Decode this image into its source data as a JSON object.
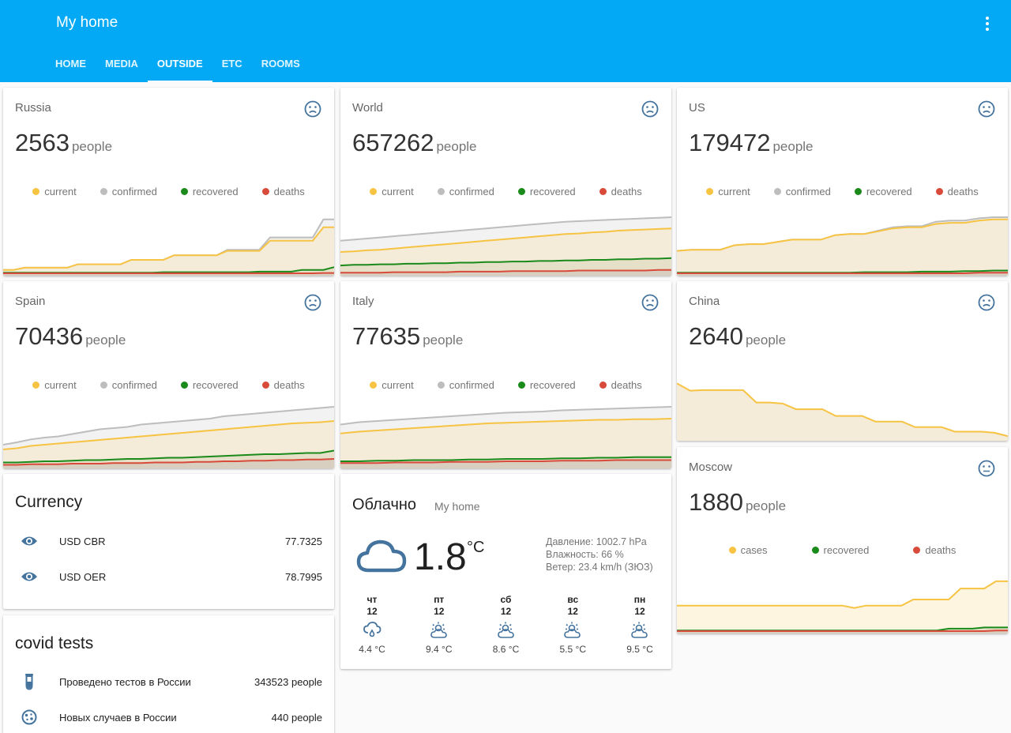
{
  "app": {
    "title": "My home"
  },
  "tabs": [
    {
      "label": "HOME",
      "active": false
    },
    {
      "label": "MEDIA",
      "active": false
    },
    {
      "label": "OUTSIDE",
      "active": true
    },
    {
      "label": "ETC",
      "active": false
    },
    {
      "label": "ROOMS",
      "active": false
    }
  ],
  "colors": {
    "header": "#03a9f4",
    "current": "#f6c343",
    "confirmed": "#bdbdbd",
    "recovered": "#1a8a1a",
    "deaths": "#d84a3a",
    "icon": "#44739e"
  },
  "series_labels": {
    "current": "current",
    "confirmed": "confirmed",
    "recovered": "recovered",
    "deaths": "deaths",
    "cases": "cases"
  },
  "covid_cards": [
    {
      "id": "russia",
      "name": "Russia",
      "value": "2563",
      "unit": "people",
      "icon": "sad-face-icon",
      "chart_data": {
        "type": "area",
        "series": [
          {
            "key": "current",
            "values": [
              0.06,
              0.06,
              0.1,
              0.1,
              0.1,
              0.1,
              0.1,
              0.16,
              0.16,
              0.16,
              0.16,
              0.16,
              0.24,
              0.24,
              0.24,
              0.24,
              0.32,
              0.32,
              0.32,
              0.32,
              0.32,
              0.4,
              0.4,
              0.4,
              0.4,
              0.58,
              0.58,
              0.58,
              0.58,
              0.58,
              0.82,
              0.82
            ]
          },
          {
            "key": "confirmed",
            "values": [
              0.06,
              0.06,
              0.1,
              0.1,
              0.1,
              0.1,
              0.1,
              0.16,
              0.16,
              0.16,
              0.16,
              0.16,
              0.24,
              0.24,
              0.24,
              0.24,
              0.32,
              0.32,
              0.32,
              0.32,
              0.32,
              0.42,
              0.42,
              0.42,
              0.42,
              0.64,
              0.64,
              0.64,
              0.64,
              0.64,
              0.96,
              0.96
            ]
          },
          {
            "key": "recovered",
            "values": [
              0.01,
              0.01,
              0.01,
              0.01,
              0.01,
              0.01,
              0.01,
              0.01,
              0.01,
              0.01,
              0.01,
              0.01,
              0.01,
              0.01,
              0.01,
              0.02,
              0.02,
              0.02,
              0.02,
              0.02,
              0.02,
              0.02,
              0.02,
              0.02,
              0.03,
              0.03,
              0.03,
              0.03,
              0.06,
              0.06,
              0.06,
              0.11
            ]
          },
          {
            "key": "deaths",
            "values": [
              0,
              0,
              0,
              0,
              0,
              0,
              0,
              0,
              0,
              0,
              0,
              0,
              0,
              0,
              0,
              0,
              0,
              0,
              0,
              0,
              0,
              0,
              0,
              0,
              0,
              0,
              0,
              0,
              0,
              0,
              0.005,
              0.005
            ]
          }
        ]
      }
    },
    {
      "id": "world",
      "name": "World",
      "value": "657262",
      "unit": "people",
      "icon": "sad-face-icon",
      "chart_data": {
        "type": "area",
        "series": [
          {
            "key": "current",
            "values": [
              0.38,
              0.39,
              0.41,
              0.42,
              0.44,
              0.46,
              0.48,
              0.5,
              0.52,
              0.54,
              0.56,
              0.58,
              0.6,
              0.62,
              0.64,
              0.66,
              0.68,
              0.7,
              0.71,
              0.73,
              0.74,
              0.76,
              0.77,
              0.78,
              0.79,
              0.8
            ]
          },
          {
            "key": "confirmed",
            "values": [
              0.58,
              0.6,
              0.62,
              0.64,
              0.66,
              0.68,
              0.7,
              0.72,
              0.74,
              0.76,
              0.78,
              0.8,
              0.82,
              0.84,
              0.86,
              0.88,
              0.9,
              0.92,
              0.93,
              0.94,
              0.95,
              0.96,
              0.97,
              0.98,
              0.99,
              1.0
            ]
          },
          {
            "key": "recovered",
            "values": [
              0.14,
              0.15,
              0.15,
              0.16,
              0.16,
              0.17,
              0.17,
              0.18,
              0.18,
              0.19,
              0.19,
              0.2,
              0.2,
              0.21,
              0.21,
              0.22,
              0.22,
              0.23,
              0.23,
              0.24,
              0.24,
              0.25,
              0.25,
              0.26,
              0.26,
              0.27
            ]
          },
          {
            "key": "deaths",
            "values": [
              0.01,
              0.01,
              0.01,
              0.01,
              0.02,
              0.02,
              0.02,
              0.02,
              0.02,
              0.03,
              0.03,
              0.03,
              0.03,
              0.04,
              0.04,
              0.04,
              0.04,
              0.04,
              0.05,
              0.05,
              0.05,
              0.05,
              0.05,
              0.05,
              0.06,
              0.06
            ]
          }
        ]
      }
    },
    {
      "id": "us",
      "name": "US",
      "value": "179472",
      "unit": "people",
      "icon": "sad-face-icon",
      "chart_data": {
        "type": "area",
        "series": [
          {
            "key": "current",
            "values": [
              0.4,
              0.42,
              0.42,
              0.42,
              0.5,
              0.52,
              0.52,
              0.56,
              0.6,
              0.6,
              0.6,
              0.68,
              0.7,
              0.7,
              0.75,
              0.8,
              0.82,
              0.82,
              0.88,
              0.9,
              0.9,
              0.94,
              0.96,
              0.96
            ]
          },
          {
            "key": "confirmed",
            "values": [
              0.4,
              0.42,
              0.42,
              0.42,
              0.5,
              0.52,
              0.52,
              0.56,
              0.6,
              0.6,
              0.6,
              0.68,
              0.7,
              0.7,
              0.76,
              0.82,
              0.84,
              0.84,
              0.92,
              0.94,
              0.94,
              0.98,
              1.0,
              1.0
            ]
          },
          {
            "key": "recovered",
            "values": [
              0.01,
              0.01,
              0.01,
              0.01,
              0.01,
              0.01,
              0.01,
              0.01,
              0.01,
              0.01,
              0.01,
              0.01,
              0.01,
              0.02,
              0.02,
              0.02,
              0.02,
              0.03,
              0.03,
              0.03,
              0.04,
              0.04,
              0.05,
              0.05
            ]
          },
          {
            "key": "deaths",
            "values": [
              0,
              0,
              0,
              0,
              0,
              0,
              0,
              0,
              0,
              0,
              0,
              0,
              0,
              0,
              0,
              0,
              0,
              0,
              0,
              0,
              0,
              0.01,
              0.01,
              0.01
            ]
          }
        ]
      }
    },
    {
      "id": "spain",
      "name": "Spain",
      "value": "70436",
      "unit": "people",
      "icon": "sad-face-icon",
      "chart_data": {
        "type": "area",
        "series": [
          {
            "key": "current",
            "values": [
              0.28,
              0.3,
              0.34,
              0.36,
              0.38,
              0.4,
              0.42,
              0.44,
              0.46,
              0.48,
              0.5,
              0.52,
              0.54,
              0.56,
              0.58,
              0.6,
              0.62,
              0.64,
              0.66,
              0.68,
              0.7,
              0.72,
              0.73,
              0.74,
              0.76
            ]
          },
          {
            "key": "confirmed",
            "values": [
              0.36,
              0.4,
              0.45,
              0.48,
              0.5,
              0.54,
              0.58,
              0.62,
              0.64,
              0.66,
              0.7,
              0.72,
              0.74,
              0.76,
              0.78,
              0.8,
              0.84,
              0.86,
              0.88,
              0.9,
              0.92,
              0.94,
              0.96,
              0.98,
              1.0
            ]
          },
          {
            "key": "recovered",
            "values": [
              0.06,
              0.06,
              0.07,
              0.08,
              0.08,
              0.09,
              0.1,
              0.1,
              0.11,
              0.12,
              0.12,
              0.13,
              0.14,
              0.14,
              0.15,
              0.16,
              0.17,
              0.18,
              0.19,
              0.2,
              0.2,
              0.21,
              0.22,
              0.22,
              0.26
            ]
          },
          {
            "key": "deaths",
            "values": [
              0.02,
              0.02,
              0.03,
              0.03,
              0.03,
              0.04,
              0.04,
              0.04,
              0.05,
              0.05,
              0.05,
              0.06,
              0.06,
              0.06,
              0.07,
              0.07,
              0.08,
              0.08,
              0.09,
              0.09,
              0.1,
              0.1,
              0.11,
              0.11,
              0.12
            ]
          }
        ]
      }
    },
    {
      "id": "italy",
      "name": "Italy",
      "value": "77635",
      "unit": "people",
      "icon": "sad-face-icon",
      "chart_data": {
        "type": "area",
        "series": [
          {
            "key": "current",
            "values": [
              0.55,
              0.58,
              0.6,
              0.62,
              0.64,
              0.66,
              0.68,
              0.7,
              0.72,
              0.73,
              0.74,
              0.75,
              0.76,
              0.77,
              0.78,
              0.78,
              0.79,
              0.79,
              0.8
            ]
          },
          {
            "key": "confirmed",
            "values": [
              0.7,
              0.74,
              0.76,
              0.78,
              0.8,
              0.82,
              0.84,
              0.86,
              0.88,
              0.9,
              0.91,
              0.92,
              0.94,
              0.95,
              0.96,
              0.97,
              0.98,
              0.99,
              1.0
            ]
          },
          {
            "key": "recovered",
            "values": [
              0.08,
              0.08,
              0.09,
              0.09,
              0.1,
              0.1,
              0.1,
              0.11,
              0.11,
              0.12,
              0.12,
              0.12,
              0.13,
              0.13,
              0.14,
              0.14,
              0.15,
              0.15,
              0.15
            ]
          },
          {
            "key": "deaths",
            "values": [
              0.05,
              0.05,
              0.05,
              0.06,
              0.06,
              0.06,
              0.07,
              0.07,
              0.07,
              0.08,
              0.08,
              0.08,
              0.09,
              0.09,
              0.09,
              0.1,
              0.1,
              0.1,
              0.1
            ]
          }
        ]
      }
    }
  ],
  "china": {
    "name": "China",
    "value": "2640",
    "unit": "people",
    "icon": "sad-face-icon",
    "chart_data": {
      "type": "area",
      "series": [
        {
          "key": "current",
          "values": [
            0.98,
            0.85,
            0.86,
            0.86,
            0.86,
            0.86,
            0.64,
            0.64,
            0.62,
            0.52,
            0.52,
            0.52,
            0.4,
            0.4,
            0.4,
            0.3,
            0.3,
            0.3,
            0.2,
            0.2,
            0.2,
            0.12,
            0.12,
            0.12,
            0.1,
            0.04
          ]
        }
      ]
    }
  },
  "moscow": {
    "name": "Moscow",
    "value": "1880",
    "unit": "people",
    "icon": "neutral-face-icon",
    "chart_data": {
      "type": "area",
      "series": [
        {
          "key": "cases",
          "values": [
            0.42,
            0.42,
            0.42,
            0.42,
            0.42,
            0.42,
            0.42,
            0.42,
            0.42,
            0.42,
            0.42,
            0.42,
            0.42,
            0.42,
            0.42,
            0.38,
            0.42,
            0.42,
            0.42,
            0.42,
            0.52,
            0.52,
            0.52,
            0.52,
            0.7,
            0.7,
            0.7,
            0.82,
            0.82
          ]
        },
        {
          "key": "recovered",
          "values": [
            0.01,
            0.01,
            0.01,
            0.01,
            0.01,
            0.01,
            0.01,
            0.01,
            0.01,
            0.01,
            0.01,
            0.01,
            0.01,
            0.01,
            0.01,
            0.01,
            0.01,
            0.01,
            0.01,
            0.01,
            0.01,
            0.01,
            0.01,
            0.04,
            0.04,
            0.04,
            0.06,
            0.06,
            0.06
          ]
        },
        {
          "key": "deaths",
          "values": [
            0,
            0,
            0,
            0,
            0,
            0,
            0,
            0,
            0,
            0,
            0,
            0,
            0,
            0,
            0,
            0,
            0,
            0,
            0,
            0,
            0,
            0,
            0,
            0,
            0,
            0,
            0,
            0.01,
            0.01
          ]
        }
      ]
    }
  },
  "currency": {
    "title": "Currency",
    "rows": [
      {
        "icon": "eye-icon",
        "label": "USD CBR",
        "value": "77.7325"
      },
      {
        "icon": "eye-icon",
        "label": "USD OER",
        "value": "78.7995"
      }
    ]
  },
  "covid_tests": {
    "title": "covid tests",
    "rows": [
      {
        "icon": "test-tube-icon",
        "label": "Проведено тестов в России",
        "value": "343523 people"
      },
      {
        "icon": "virus-icon",
        "label": "Новых случаев в России",
        "value": "440 people"
      }
    ]
  },
  "weather": {
    "condition": "Облачно",
    "location": "My home",
    "temperature": "1.8",
    "unit": "°C",
    "icon": "cloud-icon",
    "pressure": "Давление: 1002.7 hPa",
    "humidity": "Влажность: 66 %",
    "wind": "Ветер: 23.4 km/h (ЗЮЗ)",
    "forecast": [
      {
        "day": "чт",
        "date": "12",
        "temp": "4.4 °C",
        "icon": "cloud-rain-icon"
      },
      {
        "day": "пт",
        "date": "12",
        "temp": "9.4 °C",
        "icon": "partly-cloudy-icon"
      },
      {
        "day": "сб",
        "date": "12",
        "temp": "8.6 °C",
        "icon": "partly-cloudy-icon"
      },
      {
        "day": "вс",
        "date": "12",
        "temp": "5.5 °C",
        "icon": "partly-cloudy-icon"
      },
      {
        "day": "пн",
        "date": "12",
        "temp": "9.5 °C",
        "icon": "partly-cloudy-icon"
      }
    ]
  }
}
